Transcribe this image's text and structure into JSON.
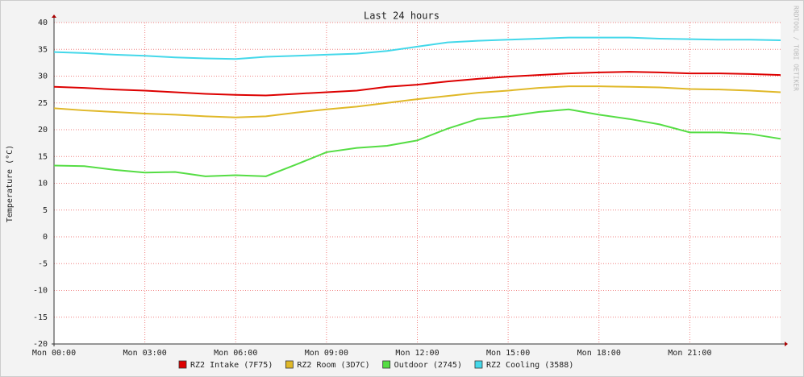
{
  "chart_data": {
    "type": "line",
    "title": "Last 24 hours",
    "y_label": "Temperature (°C)",
    "watermark": "RRDTOOL / TOBI OETIKER",
    "x": [
      0,
      1,
      2,
      3,
      4,
      5,
      6,
      7,
      8,
      9,
      10,
      11,
      12,
      13,
      14,
      15,
      16,
      17,
      18,
      19,
      20,
      21,
      22,
      23,
      24
    ],
    "xlim": [
      0,
      24
    ],
    "xticks": [
      {
        "value": 0,
        "label": "Mon 00:00"
      },
      {
        "value": 3,
        "label": "Mon 03:00"
      },
      {
        "value": 6,
        "label": "Mon 06:00"
      },
      {
        "value": 9,
        "label": "Mon 09:00"
      },
      {
        "value": 12,
        "label": "Mon 12:00"
      },
      {
        "value": 15,
        "label": "Mon 15:00"
      },
      {
        "value": 18,
        "label": "Mon 18:00"
      },
      {
        "value": 21,
        "label": "Mon 21:00"
      }
    ],
    "ylim": [
      -20,
      40
    ],
    "yticks": [
      -20,
      -15,
      -10,
      -5,
      0,
      5,
      10,
      15,
      20,
      25,
      30,
      35,
      40
    ],
    "grid": true,
    "series": [
      {
        "name": "RZ2 Intake (7F75)",
        "color": "#dd0000",
        "values": [
          28,
          27.8,
          27.5,
          27.3,
          27,
          26.7,
          26.5,
          26.4,
          26.7,
          27,
          27.3,
          28,
          28.4,
          29,
          29.5,
          29.9,
          30.2,
          30.5,
          30.7,
          30.8,
          30.7,
          30.5,
          30.5,
          30.4,
          30.2
        ]
      },
      {
        "name": "RZ2 Room (3D7C)",
        "color": "#e0b828",
        "values": [
          24,
          23.6,
          23.3,
          23,
          22.8,
          22.5,
          22.3,
          22.5,
          23.2,
          23.8,
          24.3,
          25,
          25.7,
          26.3,
          26.9,
          27.3,
          27.8,
          28.1,
          28.1,
          28,
          27.9,
          27.6,
          27.5,
          27.3,
          27
        ]
      },
      {
        "name": "Outdoor (2745)",
        "color": "#55dd44",
        "values": [
          13.3,
          13.2,
          12.5,
          12,
          12.1,
          11.3,
          11.5,
          11.3,
          13.5,
          15.8,
          16.6,
          17,
          18,
          20.2,
          22,
          22.5,
          23.3,
          23.8,
          22.8,
          22,
          21,
          19.5,
          19.5,
          19.2,
          18.3
        ]
      },
      {
        "name": "RZ2 Cooling (3588)",
        "color": "#44d8ea",
        "values": [
          34.5,
          34.3,
          34,
          33.8,
          33.5,
          33.3,
          33.2,
          33.6,
          33.8,
          34,
          34.2,
          34.7,
          35.5,
          36.3,
          36.6,
          36.8,
          37,
          37.2,
          37.2,
          37.2,
          37,
          36.9,
          36.8,
          36.8,
          36.7
        ]
      }
    ]
  }
}
